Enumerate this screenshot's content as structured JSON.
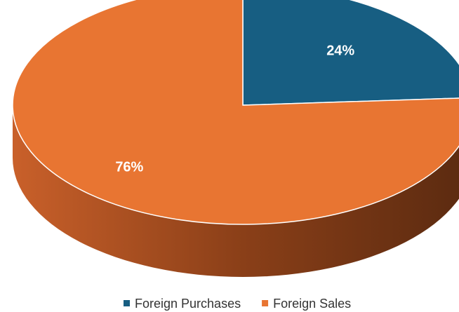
{
  "chart_data": {
    "type": "pie",
    "categories": [
      "Foreign Purchases",
      "Foreign Sales"
    ],
    "values": [
      24,
      76
    ],
    "value_labels": [
      "24%",
      "76%"
    ],
    "colors": [
      "#175e82",
      "#e87532"
    ],
    "legend": "bottom"
  }
}
